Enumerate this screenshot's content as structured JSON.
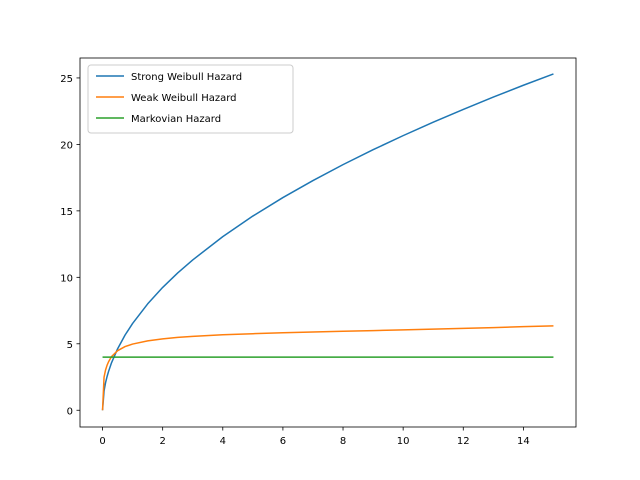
{
  "chart_data": {
    "type": "line",
    "title": "",
    "xlabel": "",
    "ylabel": "",
    "xlim": [
      -0.75,
      15.75
    ],
    "ylim": [
      -1.26,
      26.5
    ],
    "xticks": [
      0,
      2,
      4,
      6,
      8,
      10,
      12,
      14
    ],
    "xtick_labels": [
      "0",
      "2",
      "4",
      "6",
      "8",
      "10",
      "12",
      "14"
    ],
    "yticks": [
      0,
      5,
      10,
      15,
      20,
      25
    ],
    "ytick_labels": [
      "0",
      "5",
      "10",
      "15",
      "20",
      "25"
    ],
    "grid": false,
    "legend_position": "top-left",
    "series": [
      {
        "name": "Strong Weibull Hazard",
        "color": "#1f77b4",
        "x": [
          0,
          0.05,
          0.1,
          0.15,
          0.2,
          0.3,
          0.5,
          0.75,
          1,
          1.5,
          2,
          2.5,
          3,
          4,
          5,
          6,
          7,
          8,
          9,
          10,
          11,
          12,
          13,
          14,
          15
        ],
        "y": [
          0,
          1.46,
          2.07,
          2.53,
          2.92,
          3.58,
          4.62,
          5.66,
          6.53,
          8.0,
          9.24,
          10.33,
          11.31,
          13.06,
          14.61,
          16.0,
          17.28,
          18.48,
          19.6,
          20.66,
          21.67,
          22.63,
          23.56,
          24.45,
          25.3
        ]
      },
      {
        "name": "Weak Weibull Hazard",
        "color": "#ff7f0e",
        "x": [
          0,
          0.05,
          0.1,
          0.15,
          0.2,
          0.3,
          0.5,
          0.75,
          1,
          1.5,
          2,
          2.5,
          3,
          4,
          5,
          6,
          7,
          8,
          9,
          10,
          11,
          12,
          13,
          14,
          15
        ],
        "y": [
          0,
          2.49,
          3.03,
          3.38,
          3.65,
          4.04,
          4.48,
          4.79,
          4.98,
          5.22,
          5.37,
          5.48,
          5.56,
          5.68,
          5.76,
          5.83,
          5.89,
          5.94,
          5.99,
          6.05,
          6.1,
          6.16,
          6.22,
          6.29,
          6.35
        ]
      },
      {
        "name": "Markovian Hazard",
        "color": "#2ca02c",
        "x": [
          0,
          15
        ],
        "y": [
          4,
          4
        ]
      }
    ]
  }
}
